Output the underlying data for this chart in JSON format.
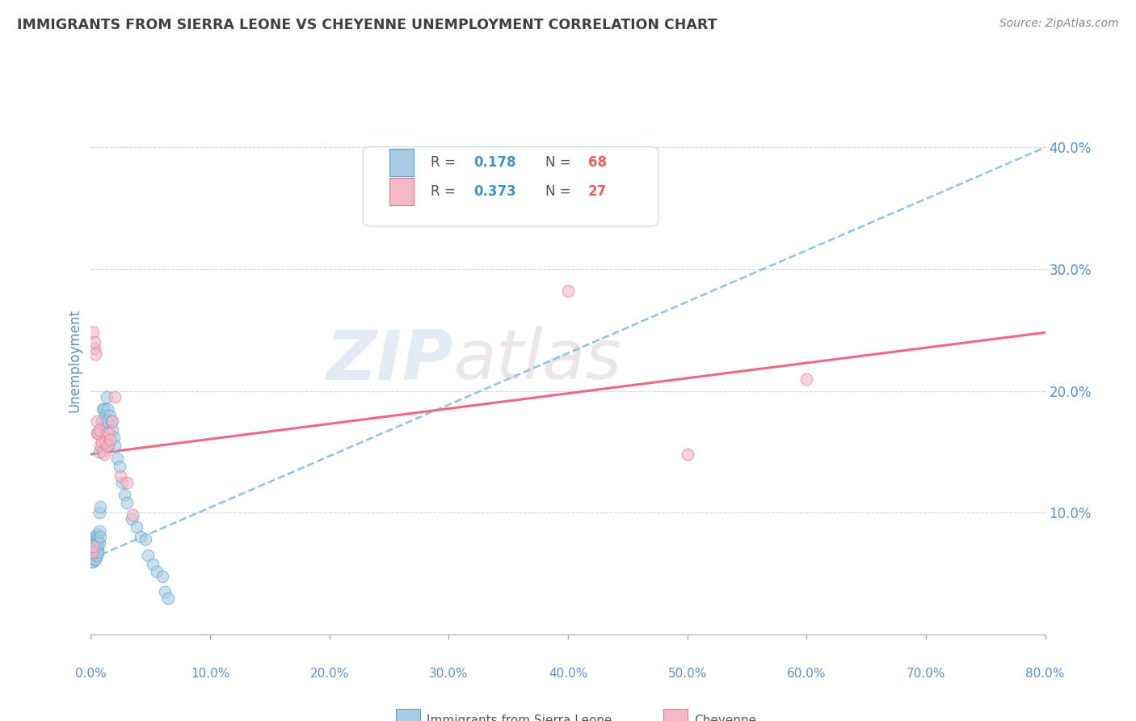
{
  "title": "IMMIGRANTS FROM SIERRA LEONE VS CHEYENNE UNEMPLOYMENT CORRELATION CHART",
  "source_text": "Source: ZipAtlas.com",
  "ylabel": "Unemployment",
  "y_ticks": [
    0.0,
    0.1,
    0.2,
    0.3,
    0.4
  ],
  "y_tick_labels": [
    "",
    "10.0%",
    "20.0%",
    "30.0%",
    "40.0%"
  ],
  "x_tick_labels": [
    "0.0%",
    "10.0%",
    "20.0%",
    "30.0%",
    "40.0%",
    "50.0%",
    "60.0%",
    "70.0%",
    "80.0%"
  ],
  "x_lim": [
    0.0,
    0.8
  ],
  "y_lim": [
    0.0,
    0.45
  ],
  "watermark_zip": "ZIP",
  "watermark_atlas": "atlas",
  "color_blue": "#a8cce4",
  "color_pink": "#f4b8c8",
  "color_blue_edge": "#5ba3d0",
  "color_pink_edge": "#e87090",
  "trendline_blue_color": "#90c4e0",
  "trendline_pink_color": "#f06880",
  "blue_scatter": [
    [
      0.001,
      0.065
    ],
    [
      0.001,
      0.07
    ],
    [
      0.001,
      0.068
    ],
    [
      0.001,
      0.072
    ],
    [
      0.001,
      0.06
    ],
    [
      0.002,
      0.075
    ],
    [
      0.002,
      0.068
    ],
    [
      0.002,
      0.072
    ],
    [
      0.002,
      0.065
    ],
    [
      0.002,
      0.06
    ],
    [
      0.003,
      0.08
    ],
    [
      0.003,
      0.075
    ],
    [
      0.003,
      0.07
    ],
    [
      0.003,
      0.068
    ],
    [
      0.003,
      0.065
    ],
    [
      0.003,
      0.062
    ],
    [
      0.004,
      0.08
    ],
    [
      0.004,
      0.075
    ],
    [
      0.004,
      0.072
    ],
    [
      0.004,
      0.068
    ],
    [
      0.004,
      0.065
    ],
    [
      0.004,
      0.062
    ],
    [
      0.005,
      0.082
    ],
    [
      0.005,
      0.078
    ],
    [
      0.005,
      0.075
    ],
    [
      0.005,
      0.07
    ],
    [
      0.005,
      0.068
    ],
    [
      0.005,
      0.065
    ],
    [
      0.006,
      0.078
    ],
    [
      0.006,
      0.075
    ],
    [
      0.006,
      0.07
    ],
    [
      0.006,
      0.068
    ],
    [
      0.007,
      0.15
    ],
    [
      0.007,
      0.1
    ],
    [
      0.007,
      0.085
    ],
    [
      0.007,
      0.075
    ],
    [
      0.008,
      0.165
    ],
    [
      0.008,
      0.105
    ],
    [
      0.008,
      0.08
    ],
    [
      0.009,
      0.175
    ],
    [
      0.01,
      0.185
    ],
    [
      0.01,
      0.17
    ],
    [
      0.011,
      0.185
    ],
    [
      0.012,
      0.18
    ],
    [
      0.013,
      0.175
    ],
    [
      0.013,
      0.195
    ],
    [
      0.014,
      0.185
    ],
    [
      0.015,
      0.155
    ],
    [
      0.016,
      0.18
    ],
    [
      0.017,
      0.175
    ],
    [
      0.018,
      0.168
    ],
    [
      0.019,
      0.162
    ],
    [
      0.02,
      0.155
    ],
    [
      0.022,
      0.145
    ],
    [
      0.024,
      0.138
    ],
    [
      0.026,
      0.125
    ],
    [
      0.028,
      0.115
    ],
    [
      0.03,
      0.108
    ],
    [
      0.034,
      0.095
    ],
    [
      0.038,
      0.088
    ],
    [
      0.042,
      0.08
    ],
    [
      0.046,
      0.078
    ],
    [
      0.048,
      0.065
    ],
    [
      0.052,
      0.058
    ],
    [
      0.055,
      0.052
    ],
    [
      0.06,
      0.048
    ],
    [
      0.062,
      0.035
    ],
    [
      0.065,
      0.03
    ]
  ],
  "pink_scatter": [
    [
      0.001,
      0.068
    ],
    [
      0.002,
      0.072
    ],
    [
      0.002,
      0.248
    ],
    [
      0.003,
      0.235
    ],
    [
      0.003,
      0.24
    ],
    [
      0.004,
      0.23
    ],
    [
      0.005,
      0.165
    ],
    [
      0.005,
      0.175
    ],
    [
      0.006,
      0.165
    ],
    [
      0.007,
      0.168
    ],
    [
      0.008,
      0.155
    ],
    [
      0.009,
      0.158
    ],
    [
      0.01,
      0.15
    ],
    [
      0.011,
      0.148
    ],
    [
      0.012,
      0.158
    ],
    [
      0.013,
      0.165
    ],
    [
      0.014,
      0.155
    ],
    [
      0.015,
      0.165
    ],
    [
      0.016,
      0.16
    ],
    [
      0.018,
      0.175
    ],
    [
      0.02,
      0.195
    ],
    [
      0.025,
      0.13
    ],
    [
      0.03,
      0.125
    ],
    [
      0.035,
      0.098
    ],
    [
      0.4,
      0.282
    ],
    [
      0.5,
      0.148
    ],
    [
      0.6,
      0.21
    ]
  ],
  "blue_trend_x": [
    0.0,
    0.8
  ],
  "blue_trend_y": [
    0.062,
    0.4
  ],
  "pink_trend_x": [
    0.0,
    0.8
  ],
  "pink_trend_y": [
    0.148,
    0.248
  ],
  "background_color": "#ffffff",
  "grid_color": "#d0d8e8",
  "title_color": "#404040",
  "axis_tick_color": "#5b8fc9",
  "ylabel_color": "#5b8fc9"
}
